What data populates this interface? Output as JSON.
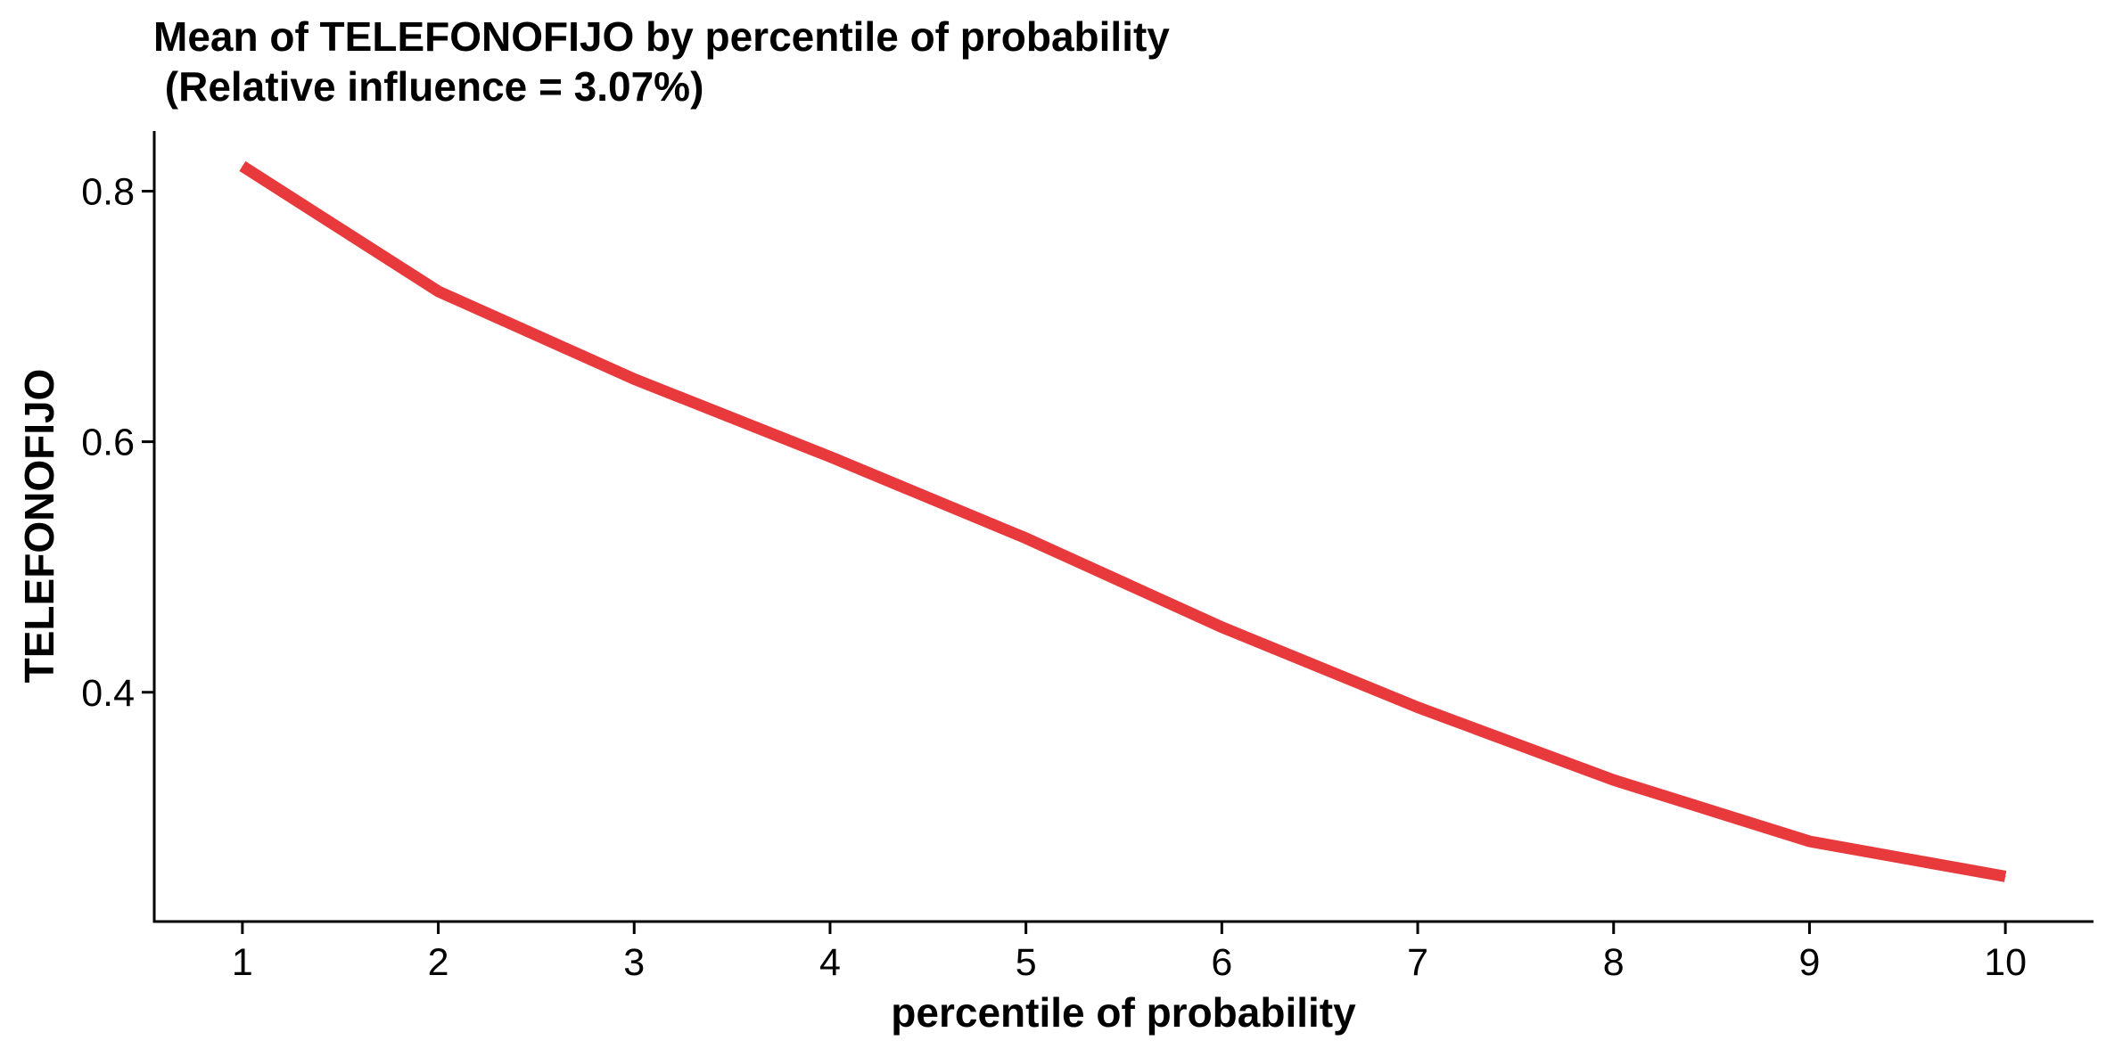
{
  "chart_data": {
    "type": "line",
    "title": "Mean of TELEFONOFIJO by percentile of probability",
    "subtitle": " (Relative influence = 3.07%)",
    "xlabel": "percentile of probability",
    "ylabel": "TELEFONOFIJO",
    "x": [
      1,
      2,
      3,
      4,
      5,
      6,
      7,
      8,
      9,
      10
    ],
    "series": [
      {
        "values": [
          0.82,
          0.72,
          0.65,
          0.588,
          0.523,
          0.452,
          0.388,
          0.33,
          0.281,
          0.253
        ],
        "color": "#e8393c"
      }
    ],
    "x_ticks": [
      "1",
      "2",
      "3",
      "4",
      "5",
      "6",
      "7",
      "8",
      "9",
      "10"
    ],
    "y_ticks": [
      0.4,
      0.6,
      0.8
    ],
    "y_tick_labels": [
      "0.4",
      "0.6",
      "0.8"
    ],
    "xlim": [
      0.55,
      10.45
    ],
    "ylim": [
      0.217,
      0.848
    ],
    "grid": false,
    "legend": "none"
  }
}
